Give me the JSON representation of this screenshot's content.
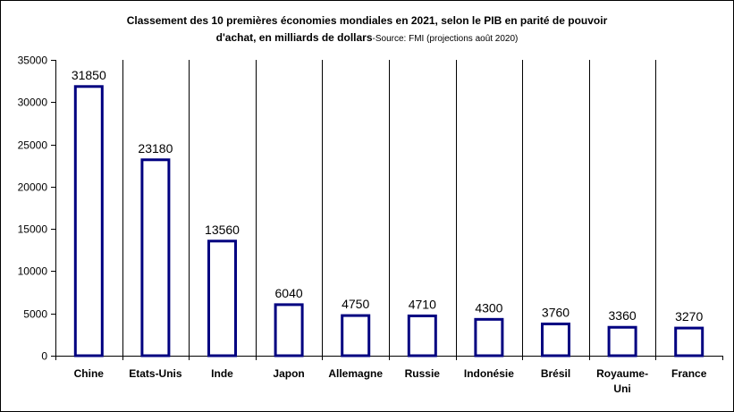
{
  "title_line1": "Classement des 10 premières économies mondiales en 2021, selon le PIB en parité de pouvoir",
  "title_line2": "d'achat, en milliards de dollars",
  "source": "-Source: FMI (projections août 2020)",
  "colors": {
    "bar_edge": "#000080",
    "bar_fill": "#ffffff",
    "axis": "#000000",
    "grid": "#000000"
  },
  "chart_data": {
    "type": "bar",
    "categories": [
      "Chine",
      "Etats-Unis",
      "Inde",
      "Japon",
      "Allemagne",
      "Russie",
      "Indonésie",
      "Brésil",
      "Royaume-Uni",
      "France"
    ],
    "category_lines": [
      [
        "Chine"
      ],
      [
        "Etats-Unis"
      ],
      [
        "Inde"
      ],
      [
        "Japon"
      ],
      [
        "Allemagne"
      ],
      [
        "Russie"
      ],
      [
        "Indonésie"
      ],
      [
        "Brésil"
      ],
      [
        "Royaume-",
        "Uni"
      ],
      [
        "France"
      ]
    ],
    "values": [
      31850,
      23180,
      13560,
      6040,
      4750,
      4710,
      4300,
      3760,
      3360,
      3270
    ],
    "data_labels": [
      "31850",
      "23180",
      "13560",
      "6040",
      "4750",
      "4710",
      "4300",
      "3760",
      "3360",
      "3270"
    ],
    "yticks": [
      0,
      5000,
      10000,
      15000,
      20000,
      25000,
      30000,
      35000
    ],
    "ylim": [
      0,
      35000
    ],
    "xlabel": "",
    "ylabel": "",
    "grid": "vertical category separators",
    "legend": "none"
  }
}
